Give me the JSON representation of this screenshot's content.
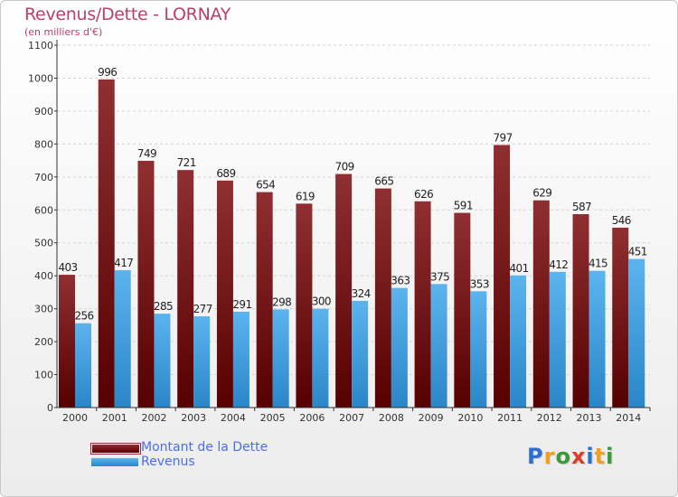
{
  "title": "Revenus/Dette - LORNAY",
  "subtitle": "(en milliers d'€)",
  "colors": {
    "debt_top": "#8f2f32",
    "debt_bottom": "#560000",
    "revenue_top": "#5cb4ee",
    "revenue_bottom": "#2a86c8",
    "title": "#b8406a",
    "legend_text": "#4a6ee8"
  },
  "chart_data": {
    "type": "bar",
    "categories": [
      "2000",
      "2001",
      "2002",
      "2003",
      "2004",
      "2005",
      "2006",
      "2007",
      "2008",
      "2009",
      "2010",
      "2011",
      "2012",
      "2013",
      "2014"
    ],
    "series": [
      {
        "name": "Montant de la Dette",
        "values": [
          403,
          996,
          749,
          721,
          689,
          654,
          619,
          709,
          665,
          626,
          591,
          797,
          629,
          587,
          546
        ]
      },
      {
        "name": "Revenus",
        "values": [
          256,
          417,
          285,
          277,
          291,
          298,
          300,
          324,
          363,
          375,
          353,
          401,
          412,
          415,
          451
        ]
      }
    ],
    "y_ticks": [
      "0",
      "100",
      "200",
      "300",
      "400",
      "500",
      "600",
      "700",
      "800",
      "900",
      "1000",
      "1100"
    ],
    "ylim": [
      0,
      1100
    ],
    "grid": true,
    "legend_position": "bottom-left"
  },
  "legend": {
    "items": [
      {
        "label": "Montant de la Dette"
      },
      {
        "label": "Revenus"
      }
    ]
  },
  "logo": {
    "letters": [
      {
        "ch": "P",
        "color": "#2d6fd0"
      },
      {
        "ch": "r",
        "color": "#f0a020"
      },
      {
        "ch": "o",
        "color": "#3a9a3a"
      },
      {
        "ch": "x",
        "color": "#e03a2a"
      },
      {
        "ch": "i",
        "color": "#2d6fd0"
      },
      {
        "ch": "t",
        "color": "#f0a020"
      },
      {
        "ch": "i",
        "color": "#3a9a3a"
      }
    ]
  }
}
